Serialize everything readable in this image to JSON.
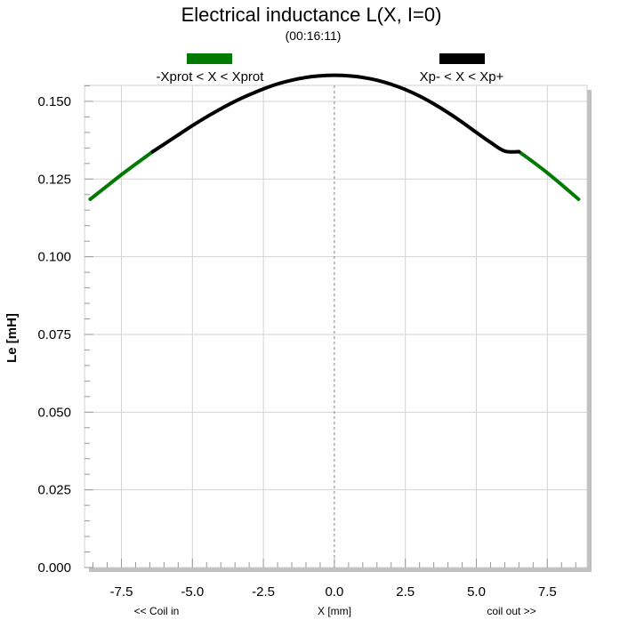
{
  "chart_data": {
    "type": "line",
    "title": "Electrical inductance L(X, I=0)",
    "subtitle": "(00:16:11)",
    "xlabel": "X [mm]",
    "ylabel": "Le [mH]",
    "x_left_note": "<< Coil in",
    "x_right_note": "coil out >>",
    "xlim": [
      -8.8,
      8.9
    ],
    "ylim": [
      0.0,
      0.16
    ],
    "x_ticks": [
      -7.5,
      -5.0,
      -2.5,
      0.0,
      2.5,
      5.0,
      7.5
    ],
    "x_tick_labels": [
      "-7.5",
      "-5.0",
      "-2.5",
      "0.0",
      "2.5",
      "5.0",
      "7.5"
    ],
    "y_ticks": [
      0.0,
      0.025,
      0.05,
      0.075,
      0.1,
      0.125,
      0.15
    ],
    "y_tick_labels": [
      "0.000",
      "0.025",
      "0.050",
      "0.075",
      "0.100",
      "0.125",
      "0.150"
    ],
    "grid": true,
    "legend_position": "top",
    "series": [
      {
        "name": "-Xprot < X < Xprot",
        "color": "#007a00",
        "segments": [
          {
            "x": [
              -8.6,
              -8.0,
              -7.5,
              -7.0,
              -6.4
            ],
            "y": [
              0.1185,
              0.1228,
              0.1264,
              0.1298,
              0.1338
            ]
          },
          {
            "x": [
              6.5,
              7.0,
              7.5,
              8.0,
              8.6
            ],
            "y": [
              0.1338,
              0.1305,
              0.127,
              0.1232,
              0.1185
            ]
          }
        ]
      },
      {
        "name": "Xp- < X < Xp+",
        "color": "#000000",
        "segments": [
          {
            "x": [
              -6.4,
              -6.0,
              -5.5,
              -5.0,
              -4.5,
              -4.0,
              -3.5,
              -3.0,
              -2.5,
              -2.0,
              -1.5,
              -1.0,
              -0.5,
              0.0,
              0.5,
              1.0,
              1.5,
              2.0,
              2.5,
              3.0,
              3.5,
              4.0,
              4.5,
              5.0,
              5.5,
              6.0,
              6.5
            ],
            "y": [
              0.1338,
              0.1362,
              0.1392,
              0.1422,
              0.145,
              0.1476,
              0.15,
              0.1521,
              0.154,
              0.1556,
              0.1568,
              0.1577,
              0.1582,
              0.1584,
              0.1582,
              0.1577,
              0.1568,
              0.1555,
              0.1538,
              0.1517,
              0.1492,
              0.1464,
              0.1433,
              0.14,
              0.1368,
              0.134,
              0.1338
            ]
          }
        ]
      }
    ]
  }
}
